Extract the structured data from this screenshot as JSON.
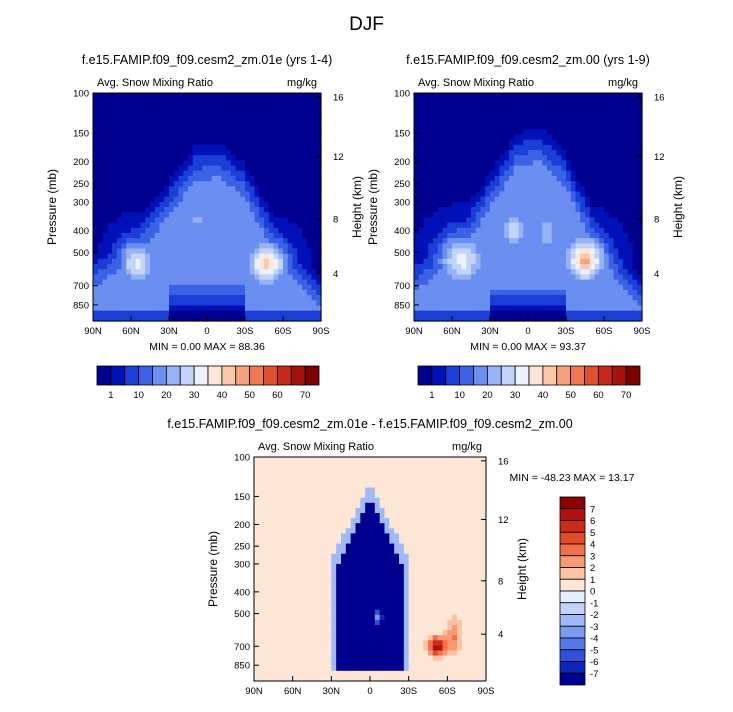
{
  "figure": {
    "title": "DJF"
  },
  "colors": {
    "bluefill": "#00008f",
    "redfill": "#8b0000",
    "axis": "#000000"
  },
  "chart_data": [
    {
      "type": "heatmap",
      "title": "f.e15.FAMIP.f09_f09.cesm2_zm.01e (yrs 1-4)",
      "left_label": "Avg. Snow Mixing Ratio",
      "right_label": "mg/kg",
      "xlabel": "",
      "ylabel": "Pressure (mb)",
      "y2label": "Height (km)",
      "xticks": [
        "90N",
        "60N",
        "30N",
        "0",
        "30S",
        "60S",
        "90S"
      ],
      "yticks": [
        "100",
        "150",
        "200",
        "250",
        "300",
        "400",
        "500",
        "700",
        "850"
      ],
      "y2ticks": [
        "16",
        "12",
        "8",
        "4"
      ],
      "stats": "MIN =  0.00  MAX = 88.36",
      "colorbar": {
        "labels": [
          "1",
          "10",
          "20",
          "30",
          "40",
          "50",
          "60",
          "70"
        ],
        "colors": [
          "#00008f",
          "#0011b8",
          "#1b3ed6",
          "#3b62e6",
          "#6a8ff0",
          "#97b3f5",
          "#c2d4fa",
          "#ebf2fe",
          "#fde6d6",
          "#fbc8ac",
          "#f6a27e",
          "#ee7a55",
          "#e0502f",
          "#c5271a",
          "#a3120d",
          "#7d0000"
        ]
      },
      "field": {
        "background": "#00008f",
        "xrange": [
          -90,
          90
        ],
        "prange": [
          100,
          1000
        ],
        "envelope": [
          [
            -90,
            500
          ],
          [
            -70,
            420
          ],
          [
            -50,
            330
          ],
          [
            -30,
            240
          ],
          [
            -10,
            170
          ],
          [
            10,
            165
          ],
          [
            30,
            200
          ],
          [
            50,
            320
          ],
          [
            70,
            470
          ],
          [
            90,
            620
          ]
        ],
        "blobs": [
          {
            "lat": -55,
            "p": 560,
            "rx": 16,
            "rh": 0.26,
            "val": 62
          },
          {
            "lat": -8,
            "p": 360,
            "rx": 6,
            "rh": 0.14,
            "val": 48
          },
          {
            "lat": 3,
            "p": 470,
            "rx": 5,
            "rh": 0.17,
            "val": 38
          },
          {
            "lat": 47,
            "p": 560,
            "rx": 17,
            "rh": 0.24,
            "val": 78
          }
        ],
        "base": 30
      }
    },
    {
      "type": "heatmap",
      "title": "f.e15.FAMIP.f09_f09.cesm2_zm.00 (yrs 1-9)",
      "left_label": "Avg. Snow Mixing Ratio",
      "right_label": "mg/kg",
      "xlabel": "",
      "ylabel": "Pressure (mb)",
      "y2label": "Height (km)",
      "xticks": [
        "90N",
        "60N",
        "30N",
        "0",
        "30S",
        "60S",
        "90S"
      ],
      "yticks": [
        "100",
        "150",
        "200",
        "250",
        "300",
        "400",
        "500",
        "700",
        "850"
      ],
      "y2ticks": [
        "16",
        "12",
        "8",
        "4"
      ],
      "stats": "MIN =  0.00  MAX = 93.37",
      "colorbar": {
        "labels": [
          "1",
          "10",
          "20",
          "30",
          "40",
          "50",
          "60",
          "70"
        ],
        "colors": [
          "#00008f",
          "#0011b8",
          "#1b3ed6",
          "#3b62e6",
          "#6a8ff0",
          "#97b3f5",
          "#c2d4fa",
          "#ebf2fe",
          "#fde6d6",
          "#fbc8ac",
          "#f6a27e",
          "#ee7a55",
          "#e0502f",
          "#c5271a",
          "#a3120d",
          "#7d0000"
        ]
      },
      "field": {
        "background": "#00008f",
        "xrange": [
          -90,
          90
        ],
        "prange": [
          100,
          1000
        ],
        "envelope": [
          [
            -90,
            520
          ],
          [
            -70,
            430
          ],
          [
            -50,
            320
          ],
          [
            -30,
            220
          ],
          [
            -10,
            150
          ],
          [
            10,
            140
          ],
          [
            30,
            180
          ],
          [
            50,
            300
          ],
          [
            70,
            460
          ],
          [
            90,
            620
          ]
        ],
        "blobs": [
          {
            "lat": -52,
            "p": 540,
            "rx": 20,
            "rh": 0.28,
            "val": 64
          },
          {
            "lat": -12,
            "p": 400,
            "rx": 12,
            "rh": 0.2,
            "val": 58
          },
          {
            "lat": 15,
            "p": 410,
            "rx": 11,
            "rh": 0.2,
            "val": 52
          },
          {
            "lat": 45,
            "p": 540,
            "rx": 18,
            "rh": 0.26,
            "val": 80
          }
        ],
        "base": 34
      }
    },
    {
      "type": "heatmap",
      "title": "f.e15.FAMIP.f09_f09.cesm2_zm.01e - f.e15.FAMIP.f09_f09.cesm2_zm.00",
      "left_label": "Avg. Snow Mixing Ratio",
      "right_label": "mg/kg",
      "xlabel": "",
      "ylabel": "Pressure (mb)",
      "y2label": "Height (km)",
      "xticks": [
        "90N",
        "60N",
        "30N",
        "0",
        "30S",
        "60S",
        "90S"
      ],
      "yticks": [
        "100",
        "150",
        "200",
        "250",
        "300",
        "400",
        "500",
        "700",
        "850"
      ],
      "y2ticks": [
        "16",
        "12",
        "8",
        "4"
      ],
      "stats": "MIN = -48.23  MAX =  13.17",
      "colorbar": {
        "labels": [
          "7",
          "6",
          "5",
          "4",
          "3",
          "2",
          "1",
          "0",
          "-1",
          "-2",
          "-3",
          "-4",
          "-5",
          "-6",
          "-7"
        ],
        "colors": [
          "#8b0000",
          "#b01212",
          "#cf2a1c",
          "#e24a2c",
          "#ef7149",
          "#f79a70",
          "#fbc3a3",
          "#fde6d6",
          "#e4eefd",
          "#c2d4fa",
          "#9fbaf6",
          "#7a9bf0",
          "#5478e8",
          "#2f50d9",
          "#0c25bb",
          "#00008f"
        ]
      },
      "diff": {
        "regions": [
          {
            "kind": "tongue",
            "lat": 0,
            "top": 150,
            "val": -8
          },
          {
            "kind": "blob",
            "lat": 52,
            "p": 700,
            "rx": 7,
            "rh": 0.1,
            "val": 7
          },
          {
            "kind": "blob",
            "lat": 65,
            "p": 630,
            "rx": 6,
            "rh": 0.2,
            "val": 3
          },
          {
            "kind": "blob",
            "lat": 7,
            "p": 520,
            "rx": 2,
            "rh": 0.06,
            "val": 7
          },
          {
            "kind": "blob",
            "lat": -60,
            "p": 450,
            "rx": 25,
            "rh": 0.45,
            "val": 1
          },
          {
            "kind": "blob",
            "lat": 85,
            "p": 110,
            "rx": 4,
            "rh": 0.12,
            "val": 1
          }
        ]
      }
    }
  ]
}
